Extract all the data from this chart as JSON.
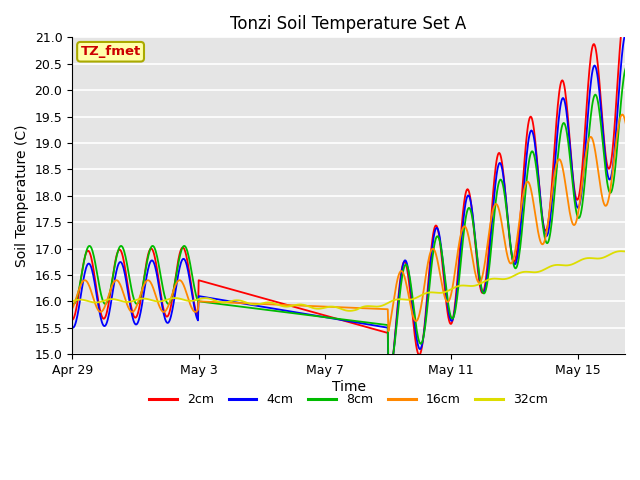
{
  "title": "Tonzi Soil Temperature Set A",
  "xlabel": "Time",
  "ylabel": "Soil Temperature (C)",
  "ylim": [
    15.0,
    21.0
  ],
  "yticks": [
    15.0,
    15.5,
    16.0,
    16.5,
    17.0,
    17.5,
    18.0,
    18.5,
    19.0,
    19.5,
    20.0,
    20.5,
    21.0
  ],
  "xtick_labels": [
    "Apr 29",
    "May 3",
    "May 7",
    "May 11",
    "May 15"
  ],
  "xtick_positions": [
    0,
    4,
    8,
    12,
    16
  ],
  "xlim": [
    0,
    17.5
  ],
  "legend_label": "TZ_fmet",
  "series_labels": [
    "2cm",
    "4cm",
    "8cm",
    "16cm",
    "32cm"
  ],
  "series_colors": [
    "#ff0000",
    "#0000ff",
    "#00bb00",
    "#ff8800",
    "#dddd00"
  ],
  "bg_color": "#e5e5e5",
  "grid_color": "#ffffff",
  "title_fontsize": 12,
  "label_fontsize": 10,
  "tick_fontsize": 9,
  "linewidth": 1.3
}
